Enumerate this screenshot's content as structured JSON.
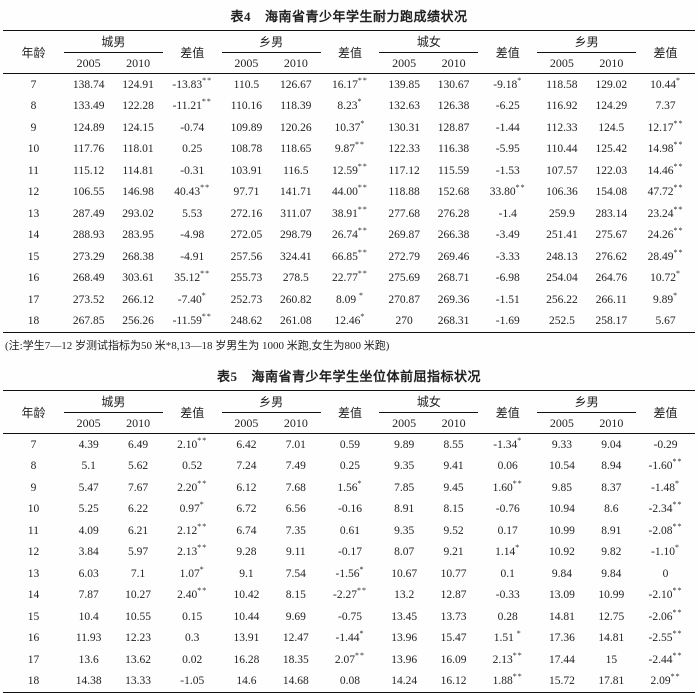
{
  "table4": {
    "label": "表4",
    "title": "海南省青少年学生耐力跑成绩状况",
    "columns": {
      "age": "年龄",
      "diff": "差值",
      "years": [
        "2005",
        "2010"
      ],
      "groups": [
        "城男",
        "乡男",
        "城女",
        "乡男"
      ]
    },
    "rows": [
      [
        "7",
        "138.74",
        "124.91",
        "-13.83**",
        "110.5",
        "126.67",
        "16.17**",
        "139.85",
        "130.67",
        "-9.18*",
        "118.58",
        "129.02",
        "10.44*"
      ],
      [
        "8",
        "133.49",
        "122.28",
        "-11.21**",
        "110.16",
        "118.39",
        "8.23*",
        "132.63",
        "126.38",
        "-6.25",
        "116.92",
        "124.29",
        "7.37"
      ],
      [
        "9",
        "124.89",
        "124.15",
        "-0.74",
        "109.89",
        "120.26",
        "10.37*",
        "130.31",
        "128.87",
        "-1.44",
        "112.33",
        "124.5",
        "12.17**"
      ],
      [
        "10",
        "117.76",
        "118.01",
        "0.25",
        "108.78",
        "118.65",
        "9.87**",
        "122.33",
        "116.38",
        "-5.95",
        "110.44",
        "125.42",
        "14.98**"
      ],
      [
        "11",
        "115.12",
        "114.81",
        "-0.31",
        "103.91",
        "116.5",
        "12.59**",
        "117.12",
        "115.59",
        "-1.53",
        "107.57",
        "122.03",
        "14.46**"
      ],
      [
        "12",
        "106.55",
        "146.98",
        "40.43**",
        "97.71",
        "141.71",
        "44.00**",
        "118.88",
        "152.68",
        "33.80**",
        "106.36",
        "154.08",
        "47.72**"
      ],
      [
        "13",
        "287.49",
        "293.02",
        "5.53",
        "272.16",
        "311.07",
        "38.91**",
        "277.68",
        "276.28",
        "-1.4",
        "259.9",
        "283.14",
        "23.24**"
      ],
      [
        "14",
        "288.93",
        "283.95",
        "-4.98",
        "272.05",
        "298.79",
        "26.74**",
        "269.87",
        "266.38",
        "-3.49",
        "251.41",
        "275.67",
        "24.26**"
      ],
      [
        "15",
        "273.29",
        "268.38",
        "-4.91",
        "257.56",
        "324.41",
        "66.85**",
        "272.79",
        "269.46",
        "-3.33",
        "248.13",
        "276.62",
        "28.49**"
      ],
      [
        "16",
        "268.49",
        "303.61",
        "35.12**",
        "255.73",
        "278.5",
        "22.77**",
        "275.69",
        "268.71",
        "-6.98",
        "254.04",
        "264.76",
        "10.72*"
      ],
      [
        "17",
        "273.52",
        "266.12",
        "-7.40*",
        "252.73",
        "260.82",
        "8.09 *",
        "270.87",
        "269.36",
        "-1.51",
        "256.22",
        "266.11",
        "9.89*"
      ],
      [
        "18",
        "267.85",
        "256.26",
        "-11.59**",
        "248.62",
        "261.08",
        "12.46*",
        "270",
        "268.31",
        "-1.69",
        "252.5",
        "258.17",
        "5.67"
      ]
    ],
    "note": "(注:学生7—12 岁测试指标为50 米*8,13—18 岁男生为 1000 米跑,女生为800 米跑)"
  },
  "table5": {
    "label": "表5",
    "title": "海南省青少年学生坐位体前屈指标状况",
    "columns": {
      "age": "年龄",
      "diff": "差值",
      "years": [
        "2005",
        "2010"
      ],
      "groups": [
        "城男",
        "乡男",
        "城女",
        "乡男"
      ]
    },
    "rows": [
      [
        "7",
        "4.39",
        "6.49",
        "2.10**",
        "6.42",
        "7.01",
        "0.59",
        "9.89",
        "8.55",
        "-1.34*",
        "9.33",
        "9.04",
        "-0.29"
      ],
      [
        "8",
        "5.1",
        "5.62",
        "0.52",
        "7.24",
        "7.49",
        "0.25",
        "9.35",
        "9.41",
        "0.06",
        "10.54",
        "8.94",
        "-1.60**"
      ],
      [
        "9",
        "5.47",
        "7.67",
        "2.20**",
        "6.12",
        "7.68",
        "1.56*",
        "7.85",
        "9.45",
        "1.60**",
        "9.85",
        "8.37",
        "-1.48*"
      ],
      [
        "10",
        "5.25",
        "6.22",
        "0.97*",
        "6.72",
        "6.56",
        "-0.16",
        "8.91",
        "8.15",
        "-0.76",
        "10.94",
        "8.6",
        "-2.34**"
      ],
      [
        "11",
        "4.09",
        "6.21",
        "2.12**",
        "6.74",
        "7.35",
        "0.61",
        "9.35",
        "9.52",
        "0.17",
        "10.99",
        "8.91",
        "-2.08**"
      ],
      [
        "12",
        "3.84",
        "5.97",
        "2.13**",
        "9.28",
        "9.11",
        "-0.17",
        "8.07",
        "9.21",
        "1.14*",
        "10.92",
        "9.82",
        "-1.10*"
      ],
      [
        "13",
        "6.03",
        "7.1",
        "1.07*",
        "9.1",
        "7.54",
        "-1.56*",
        "10.67",
        "10.77",
        "0.1",
        "9.84",
        "9.84",
        "0"
      ],
      [
        "14",
        "7.87",
        "10.27",
        "2.40**",
        "10.42",
        "8.15",
        "-2.27**",
        "13.2",
        "12.87",
        "-0.33",
        "13.09",
        "10.99",
        "-2.10**"
      ],
      [
        "15",
        "10.4",
        "10.55",
        "0.15",
        "10.44",
        "9.69",
        "-0.75",
        "13.45",
        "13.73",
        "0.28",
        "14.81",
        "12.75",
        "-2.06**"
      ],
      [
        "16",
        "11.93",
        "12.23",
        "0.3",
        "13.91",
        "12.47",
        "-1.44*",
        "13.96",
        "15.47",
        "1.51 *",
        "17.36",
        "14.81",
        "-2.55**"
      ],
      [
        "17",
        "13.6",
        "13.62",
        "0.02",
        "16.28",
        "18.35",
        "2.07**",
        "13.96",
        "16.09",
        "2.13**",
        "17.44",
        "15",
        "-2.44**"
      ],
      [
        "18",
        "14.38",
        "13.33",
        "-1.05",
        "14.6",
        "14.68",
        "0.08",
        "14.24",
        "16.12",
        "1.88**",
        "15.72",
        "17.81",
        "2.09**"
      ]
    ]
  }
}
